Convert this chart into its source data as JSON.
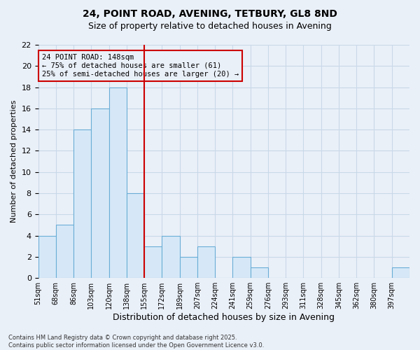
{
  "title1": "24, POINT ROAD, AVENING, TETBURY, GL8 8ND",
  "title2": "Size of property relative to detached houses in Avening",
  "xlabel": "Distribution of detached houses by size in Avening",
  "ylabel": "Number of detached properties",
  "footer_line1": "Contains HM Land Registry data © Crown copyright and database right 2025.",
  "footer_line2": "Contains public sector information licensed under the Open Government Licence v3.0.",
  "annotation_line1": "24 POINT ROAD: 148sqm",
  "annotation_line2": "← 75% of detached houses are smaller (61)",
  "annotation_line3": "25% of semi-detached houses are larger (20) →",
  "bar_values": [
    4,
    5,
    14,
    16,
    18,
    8,
    3,
    4,
    2,
    3,
    0,
    2,
    1,
    0,
    0,
    0,
    0,
    0,
    0,
    0,
    1
  ],
  "bin_labels": [
    "51sqm",
    "68sqm",
    "86sqm",
    "103sqm",
    "120sqm",
    "138sqm",
    "155sqm",
    "172sqm",
    "189sqm",
    "207sqm",
    "224sqm",
    "241sqm",
    "259sqm",
    "276sqm",
    "293sqm",
    "311sqm",
    "328sqm",
    "345sqm",
    "362sqm",
    "380sqm",
    "397sqm"
  ],
  "vline_index": 5.5,
  "bar_color": "#d6e8f7",
  "bar_edge_color": "#6aaed6",
  "vline_color": "#cc0000",
  "annotation_box_color": "#cc0000",
  "background_color": "#eaf0f8",
  "grid_color": "#c8d8e8",
  "ylim": [
    0,
    22
  ],
  "yticks": [
    0,
    2,
    4,
    6,
    8,
    10,
    12,
    14,
    16,
    18,
    20,
    22
  ]
}
